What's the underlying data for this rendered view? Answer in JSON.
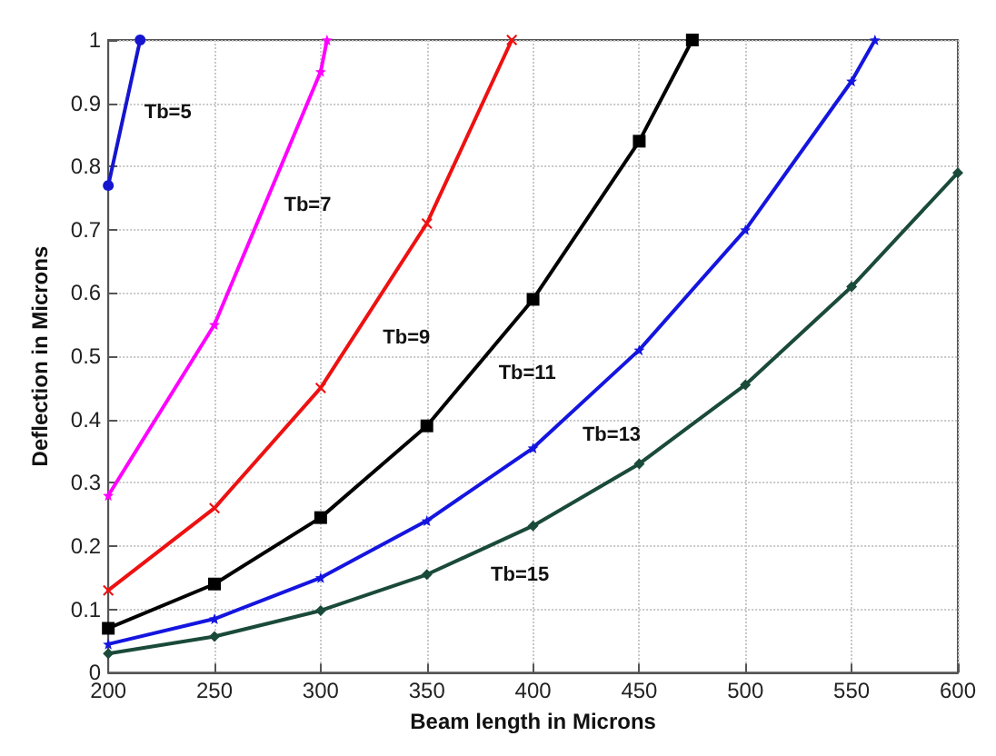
{
  "chart_data": {
    "type": "line",
    "xlabel": "Beam length in Microns",
    "ylabel": "Deflection in Microns",
    "xlim": [
      200,
      600
    ],
    "ylim": [
      0,
      1
    ],
    "xticks": [
      200,
      250,
      300,
      350,
      400,
      450,
      500,
      550,
      600
    ],
    "yticks": [
      0,
      0.1,
      0.2,
      0.3,
      0.4,
      0.5,
      0.6,
      0.7,
      0.8,
      0.9,
      1
    ],
    "grid": true,
    "line_style": "solid",
    "series": [
      {
        "name": "Tb=5",
        "color": "#1515d0",
        "marker": "circle",
        "x": [
          200,
          215
        ],
        "values": [
          0.77,
          1
        ]
      },
      {
        "name": "Tb=7",
        "color": "#ff00ff",
        "marker": "star",
        "x": [
          200,
          250,
          300,
          303
        ],
        "values": [
          0.28,
          0.55,
          0.95,
          1
        ]
      },
      {
        "name": "Tb=9",
        "color": "#ee1111",
        "marker": "cross",
        "x": [
          200,
          250,
          300,
          350,
          390
        ],
        "values": [
          0.13,
          0.26,
          0.45,
          0.71,
          1
        ]
      },
      {
        "name": "Tb=11",
        "color": "#000000",
        "marker": "square",
        "x": [
          200,
          250,
          300,
          350,
          400,
          450,
          475
        ],
        "values": [
          0.07,
          0.14,
          0.245,
          0.39,
          0.59,
          0.84,
          1
        ]
      },
      {
        "name": "Tb=13",
        "color": "#1515e0",
        "marker": "star",
        "x": [
          200,
          250,
          300,
          350,
          400,
          450,
          500,
          550,
          561
        ],
        "values": [
          0.045,
          0.085,
          0.15,
          0.24,
          0.355,
          0.51,
          0.7,
          0.935,
          1
        ]
      },
      {
        "name": "Tb=15",
        "color": "#1a4a3a",
        "marker": "diamond",
        "x": [
          200,
          250,
          300,
          350,
          400,
          450,
          500,
          550,
          600
        ],
        "values": [
          0.03,
          0.057,
          0.098,
          0.155,
          0.232,
          0.33,
          0.455,
          0.61,
          0.79
        ]
      }
    ]
  }
}
